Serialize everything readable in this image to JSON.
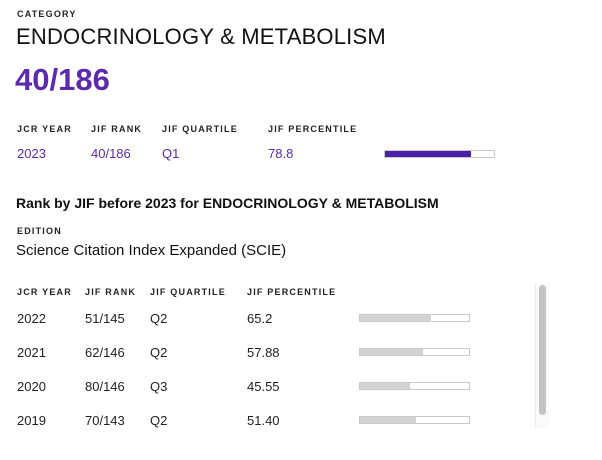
{
  "category": {
    "label": "CATEGORY",
    "name": "ENDOCRINOLOGY & METABOLISM",
    "rank": "40/186"
  },
  "current": {
    "headers": {
      "year": "JCR YEAR",
      "rank": "JIF RANK",
      "quartile": "JIF QUARTILE",
      "percentile": "JIF PERCENTILE"
    },
    "year": "2023",
    "rank": "40/186",
    "quartile": "Q1",
    "percentile": "78.8",
    "percentile_value": 78.8
  },
  "history": {
    "title": "Rank by JIF before 2023 for ENDOCRINOLOGY & METABOLISM",
    "edition_label": "EDITION",
    "edition": "Science Citation Index Expanded (SCIE)",
    "headers": {
      "year": "JCR YEAR",
      "rank": "JIF RANK",
      "quartile": "JIF QUARTILE",
      "percentile": "JIF PERCENTILE"
    },
    "rows": [
      {
        "year": "2022",
        "rank": "51/145",
        "quartile": "Q2",
        "percentile": "65.2",
        "percentile_value": 65.2
      },
      {
        "year": "2021",
        "rank": "62/146",
        "quartile": "Q2",
        "percentile": "57.88",
        "percentile_value": 57.88
      },
      {
        "year": "2020",
        "rank": "80/146",
        "quartile": "Q3",
        "percentile": "45.55",
        "percentile_value": 45.55
      },
      {
        "year": "2019",
        "rank": "70/143",
        "quartile": "Q2",
        "percentile": "51.40",
        "percentile_value": 51.4
      }
    ]
  },
  "colors": {
    "accent": "#5b2aad",
    "bar_fill_current": "#4a22a8",
    "bar_fill_history": "#d3d3d3"
  }
}
